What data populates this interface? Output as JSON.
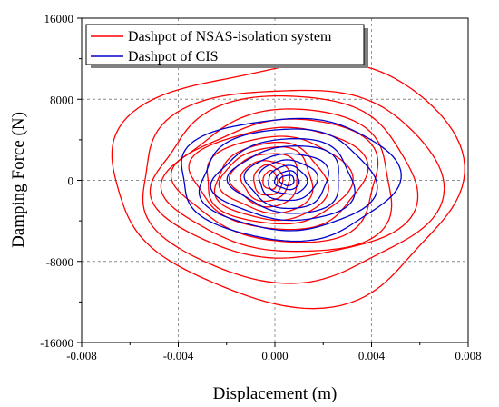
{
  "chart_data": {
    "type": "line",
    "xlabel": "Displacement (m)",
    "ylabel": "Damping Force (N)",
    "xlim": [
      -0.008,
      0.008
    ],
    "ylim": [
      -16000,
      16000
    ],
    "x_ticks": [
      -0.008,
      -0.004,
      0.0,
      0.004,
      0.008
    ],
    "x_tick_labels": [
      "-0.008",
      "-0.004",
      "0.000",
      "0.004",
      "0.008"
    ],
    "y_ticks": [
      -16000,
      -8000,
      0,
      8000,
      16000
    ],
    "y_tick_labels": [
      "-16000",
      "-8000",
      "0",
      "8000",
      "16000"
    ],
    "grid": true,
    "legend_position": "top-left",
    "series": [
      {
        "name": "Dashpot of NSAS-isolation system",
        "color": "#ff0000",
        "loops": [
          {
            "cx": 0.0004,
            "cy": 0,
            "rx": 0.0072,
            "ry": 11800
          },
          {
            "cx": 0.0004,
            "cy": -300,
            "rx": 0.0062,
            "ry": 9500
          },
          {
            "cx": 0.0003,
            "cy": 200,
            "rx": 0.0054,
            "ry": 8000
          },
          {
            "cx": 0.0003,
            "cy": -200,
            "rx": 0.0047,
            "ry": 7000
          },
          {
            "cx": 0.0002,
            "cy": 0,
            "rx": 0.0042,
            "ry": 6000
          },
          {
            "cx": 0.0001,
            "cy": 300,
            "rx": 0.0036,
            "ry": 5000
          },
          {
            "cx": 0.0,
            "cy": 0,
            "rx": 0.003,
            "ry": 4300
          },
          {
            "cx": -0.0002,
            "cy": -200,
            "rx": 0.0023,
            "ry": 3800
          },
          {
            "cx": -0.0003,
            "cy": 0,
            "rx": 0.0019,
            "ry": 3200
          },
          {
            "cx": -0.0004,
            "cy": 100,
            "rx": 0.0014,
            "ry": 2600
          },
          {
            "cx": -0.0004,
            "cy": 0,
            "rx": 0.001,
            "ry": 2000
          },
          {
            "cx": -0.0003,
            "cy": 0,
            "rx": 0.0006,
            "ry": 1500
          },
          {
            "cx": -0.0002,
            "cy": 0,
            "rx": 0.0003,
            "ry": 900
          }
        ]
      },
      {
        "name": "Dashpot of CIS",
        "color": "#0000cc",
        "loops": [
          {
            "cx": 0.0004,
            "cy": 200,
            "rx": 0.0045,
            "ry": 6000
          },
          {
            "cx": 0.0004,
            "cy": 0,
            "rx": 0.0036,
            "ry": 5000
          },
          {
            "cx": 0.0004,
            "cy": 0,
            "rx": 0.0029,
            "ry": 4000
          },
          {
            "cx": 0.0005,
            "cy": 100,
            "rx": 0.0023,
            "ry": 3300
          },
          {
            "cx": 0.0005,
            "cy": 0,
            "rx": 0.0017,
            "ry": 2700
          },
          {
            "cx": 0.0005,
            "cy": 0,
            "rx": 0.0012,
            "ry": 2000
          },
          {
            "cx": 0.0005,
            "cy": 0,
            "rx": 0.0008,
            "ry": 1400
          },
          {
            "cx": 0.0005,
            "cy": 0,
            "rx": 0.0005,
            "ry": 900
          },
          {
            "cx": 0.0005,
            "cy": 0,
            "rx": 0.0003,
            "ry": 500
          }
        ]
      }
    ]
  }
}
